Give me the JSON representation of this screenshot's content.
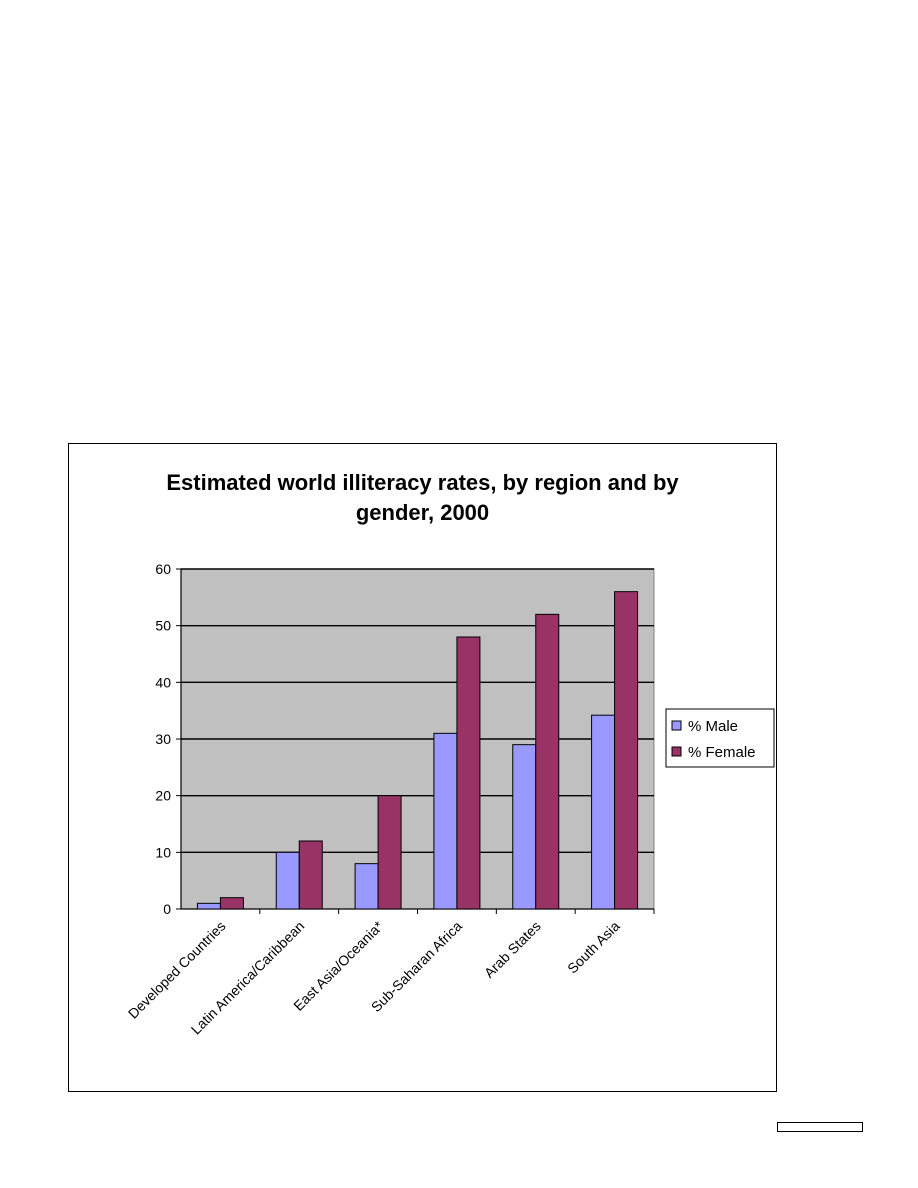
{
  "chart_data": {
    "type": "bar",
    "title": "Estimated world illiteracy rates, by region and by gender, 2000",
    "title_lines": [
      "Estimated world illiteracy rates, by region and by",
      "gender, 2000"
    ],
    "categories": [
      "Developed Countries",
      "Latin America/Caribbean",
      "East Asia/Oceania*",
      "Sub-Saharan Africa",
      "Arab States",
      "South Asia"
    ],
    "series": [
      {
        "name": "% Male",
        "color": "#9999ff",
        "values": [
          1,
          10,
          8,
          31,
          29,
          34.2
        ]
      },
      {
        "name": "% Female",
        "color": "#993366",
        "values": [
          2,
          12,
          20,
          48,
          52,
          56
        ]
      }
    ],
    "ylim": [
      0,
      60
    ],
    "yticks": [
      0,
      10,
      20,
      30,
      40,
      50,
      60
    ],
    "xlabel": "",
    "ylabel": "",
    "grid": true,
    "plot_background": "#c0c0c0",
    "legend_position": "right"
  }
}
